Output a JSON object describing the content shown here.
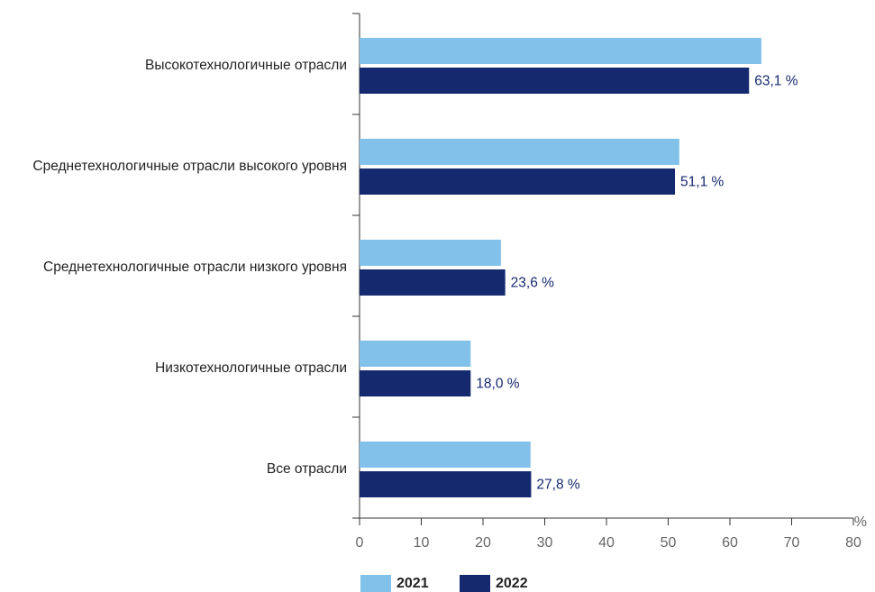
{
  "chart_data": {
    "type": "hbar",
    "categories": [
      "Высокотехнологичные отрасли",
      "Среднетехнологичные отрасли высокого уровня",
      "Среднетехнологичные отрасли низкого уровня",
      "Низкотехнологичные отрасли",
      "Все отрасли"
    ],
    "series": [
      {
        "name": "2021",
        "color": "#82c1ea",
        "values": [
          65.1,
          51.8,
          22.9,
          18.0,
          27.7
        ]
      },
      {
        "name": "2022",
        "color": "#15296f",
        "values": [
          63.1,
          51.1,
          23.6,
          18.0,
          27.8
        ],
        "value_labels": [
          "63,1 %",
          "51,1 %",
          "23,6 %",
          "18,0 %",
          "27,8 %"
        ]
      }
    ],
    "xlim": [
      0,
      80
    ],
    "xticks": [
      0,
      10,
      20,
      30,
      40,
      50,
      60,
      70,
      80
    ],
    "x_unit": "%",
    "legend": "bottom-left"
  }
}
